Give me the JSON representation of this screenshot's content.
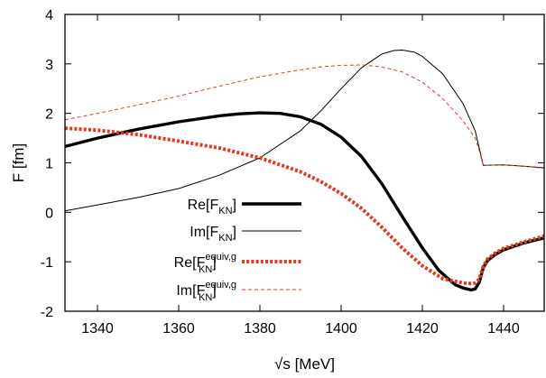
{
  "chart_data": {
    "type": "line",
    "xlabel": "√s  [MeV]",
    "ylabel": "F  [fm]",
    "xlim": [
      1332,
      1450
    ],
    "ylim": [
      -2,
      4
    ],
    "xticks": [
      1340,
      1360,
      1380,
      1400,
      1420,
      1440
    ],
    "yticks": [
      -2,
      -1,
      0,
      1,
      2,
      3,
      4
    ],
    "x_tick_labels": [
      "1340",
      "1360",
      "1380",
      "1400",
      "1420",
      "1440"
    ],
    "y_tick_labels": [
      "-2",
      "-1",
      "0",
      "1",
      "2",
      "3",
      "4"
    ],
    "grid": false,
    "legend_position": "center-left",
    "series": [
      {
        "name": "Re[F_KN]",
        "label_main": "Re[F",
        "label_sub": "KN",
        "label_sup": "",
        "label_end": "]",
        "color": "#000000",
        "style": "solid-thick",
        "x": [
          1332,
          1340,
          1350,
          1360,
          1370,
          1375,
          1380,
          1385,
          1390,
          1395,
          1400,
          1405,
          1410,
          1415,
          1420,
          1424,
          1428,
          1430,
          1432,
          1433,
          1434,
          1435,
          1436,
          1438,
          1440,
          1445,
          1450
        ],
        "y": [
          1.33,
          1.5,
          1.68,
          1.83,
          1.95,
          1.99,
          2.01,
          2.0,
          1.93,
          1.78,
          1.52,
          1.13,
          0.58,
          -0.08,
          -0.72,
          -1.17,
          -1.46,
          -1.53,
          -1.57,
          -1.55,
          -1.42,
          -1.12,
          -0.98,
          -0.85,
          -0.76,
          -0.62,
          -0.52
        ]
      },
      {
        "name": "Im[F_KN]",
        "label_main": "Im[F",
        "label_sub": "KN",
        "label_sup": "",
        "label_end": "]",
        "color": "#000000",
        "style": "solid-thin",
        "x": [
          1332,
          1340,
          1350,
          1360,
          1370,
          1380,
          1390,
          1395,
          1400,
          1405,
          1410,
          1413,
          1415,
          1418,
          1420,
          1425,
          1430,
          1433,
          1434,
          1435,
          1440,
          1445,
          1450
        ],
        "y": [
          0.03,
          0.15,
          0.3,
          0.48,
          0.75,
          1.1,
          1.65,
          2.05,
          2.5,
          2.92,
          3.2,
          3.27,
          3.28,
          3.24,
          3.15,
          2.8,
          2.2,
          1.65,
          1.3,
          0.95,
          0.96,
          0.93,
          0.9
        ]
      },
      {
        "name": "Re[F_KN^equiv,g]",
        "label_main": "Re[F",
        "label_sub": "KN",
        "label_sup": "equiv,g",
        "label_end": "]",
        "color": "#e8381c",
        "style": "dotted-thick",
        "x": [
          1332,
          1340,
          1350,
          1360,
          1370,
          1380,
          1390,
          1395,
          1400,
          1405,
          1410,
          1415,
          1420,
          1425,
          1430,
          1432,
          1433,
          1434,
          1435,
          1436,
          1438,
          1440,
          1445,
          1450
        ],
        "y": [
          1.7,
          1.66,
          1.57,
          1.44,
          1.3,
          1.1,
          0.82,
          0.62,
          0.38,
          0.08,
          -0.3,
          -0.72,
          -1.08,
          -1.34,
          -1.43,
          -1.44,
          -1.43,
          -1.35,
          -1.1,
          -0.95,
          -0.82,
          -0.73,
          -0.6,
          -0.48
        ]
      },
      {
        "name": "Im[F_KN^equiv,g]",
        "label_main": "Im[F",
        "label_sub": "KN",
        "label_sup": "equiv,g",
        "label_end": "]",
        "color": "#e8381c",
        "style": "dashed-thin",
        "x": [
          1332,
          1340,
          1350,
          1360,
          1370,
          1380,
          1390,
          1395,
          1400,
          1405,
          1410,
          1415,
          1420,
          1425,
          1430,
          1433,
          1434,
          1435,
          1440,
          1445,
          1450
        ],
        "y": [
          1.87,
          2.0,
          2.17,
          2.35,
          2.55,
          2.74,
          2.88,
          2.94,
          2.97,
          2.98,
          2.94,
          2.84,
          2.63,
          2.3,
          1.85,
          1.5,
          1.25,
          0.95,
          0.96,
          0.93,
          0.89
        ]
      }
    ]
  }
}
